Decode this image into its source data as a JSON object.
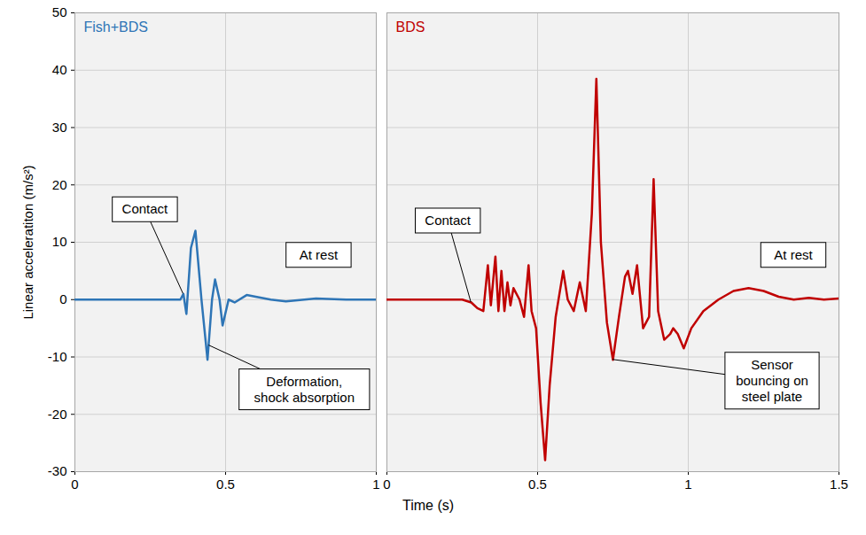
{
  "chart_data": [
    {
      "type": "line",
      "title": "Fish+BDS",
      "ylabel": "Linear acceleratiton (m/s²)",
      "grid": true,
      "xlim": [
        0,
        1
      ],
      "xticks": [
        0,
        0.5,
        1
      ],
      "ylim": [
        -30,
        50
      ],
      "yticks": [
        -30,
        -20,
        -10,
        0,
        10,
        20,
        30,
        40,
        50
      ],
      "x": [
        0,
        0.1,
        0.2,
        0.3,
        0.35,
        0.36,
        0.37,
        0.385,
        0.4,
        0.42,
        0.44,
        0.455,
        0.465,
        0.48,
        0.49,
        0.51,
        0.53,
        0.57,
        0.6,
        0.65,
        0.7,
        0.8,
        0.9,
        1.0
      ],
      "series": [
        {
          "name": "Fish+BDS",
          "color": "#2e75b6",
          "values": [
            0,
            0,
            0,
            0,
            0,
            1,
            -2.5,
            9,
            12,
            0,
            -10.5,
            0,
            3.5,
            0,
            -4.5,
            0,
            -0.5,
            0.8,
            0.5,
            0,
            -0.3,
            0.2,
            0,
            0
          ]
        }
      ],
      "annotations": [
        {
          "text": "Contact",
          "x": 0.36,
          "y": 1
        },
        {
          "text": "At rest",
          "x": 0.81,
          "y": 0
        },
        {
          "text": "Deformation, shock absorption",
          "x": 0.445,
          "y": -8
        }
      ]
    },
    {
      "type": "line",
      "title": "BDS",
      "xlabel": "Time (s)",
      "tick_labels": "x",
      "grid": true,
      "xlim": [
        0,
        1.5
      ],
      "xticks": [
        0,
        0.5,
        1,
        1.5
      ],
      "ylim": [
        -30,
        50
      ],
      "yticks": [
        -30,
        -20,
        -10,
        0,
        10,
        20,
        30,
        40,
        50
      ],
      "x": [
        0,
        0.1,
        0.2,
        0.25,
        0.28,
        0.3,
        0.32,
        0.335,
        0.345,
        0.36,
        0.37,
        0.38,
        0.39,
        0.4,
        0.41,
        0.42,
        0.44,
        0.455,
        0.47,
        0.48,
        0.495,
        0.51,
        0.525,
        0.54,
        0.56,
        0.585,
        0.6,
        0.62,
        0.64,
        0.66,
        0.68,
        0.695,
        0.71,
        0.73,
        0.75,
        0.77,
        0.79,
        0.8,
        0.815,
        0.83,
        0.85,
        0.87,
        0.885,
        0.9,
        0.92,
        0.94,
        0.95,
        0.965,
        0.985,
        1.01,
        1.05,
        1.1,
        1.15,
        1.2,
        1.25,
        1.3,
        1.35,
        1.4,
        1.45,
        1.5
      ],
      "series": [
        {
          "name": "BDS",
          "color": "#c00000",
          "values": [
            0,
            0,
            0,
            0,
            -0.5,
            -1.5,
            -2,
            6,
            -1,
            7.5,
            -2,
            5,
            -2,
            3,
            -1,
            2,
            0,
            -3,
            6,
            -2,
            -5,
            -18,
            -28,
            -15,
            -3,
            5,
            0,
            -2,
            3,
            -2,
            15,
            38.5,
            10,
            -4,
            -10.5,
            -3,
            4,
            5,
            1,
            6,
            -5,
            -3,
            21,
            -2,
            -7,
            -6,
            -5,
            -6,
            -8.5,
            -5,
            -2,
            0,
            1.5,
            2,
            1.5,
            0.5,
            0,
            0.3,
            0,
            0.2
          ]
        }
      ],
      "annotations": [
        {
          "text": "Contact",
          "x": 0.28,
          "y": -0.5
        },
        {
          "text": "At rest",
          "x": 1.35,
          "y": 0
        },
        {
          "text": "Sensor bouncing on steel plate",
          "x": 0.75,
          "y": -10.5
        }
      ]
    }
  ]
}
